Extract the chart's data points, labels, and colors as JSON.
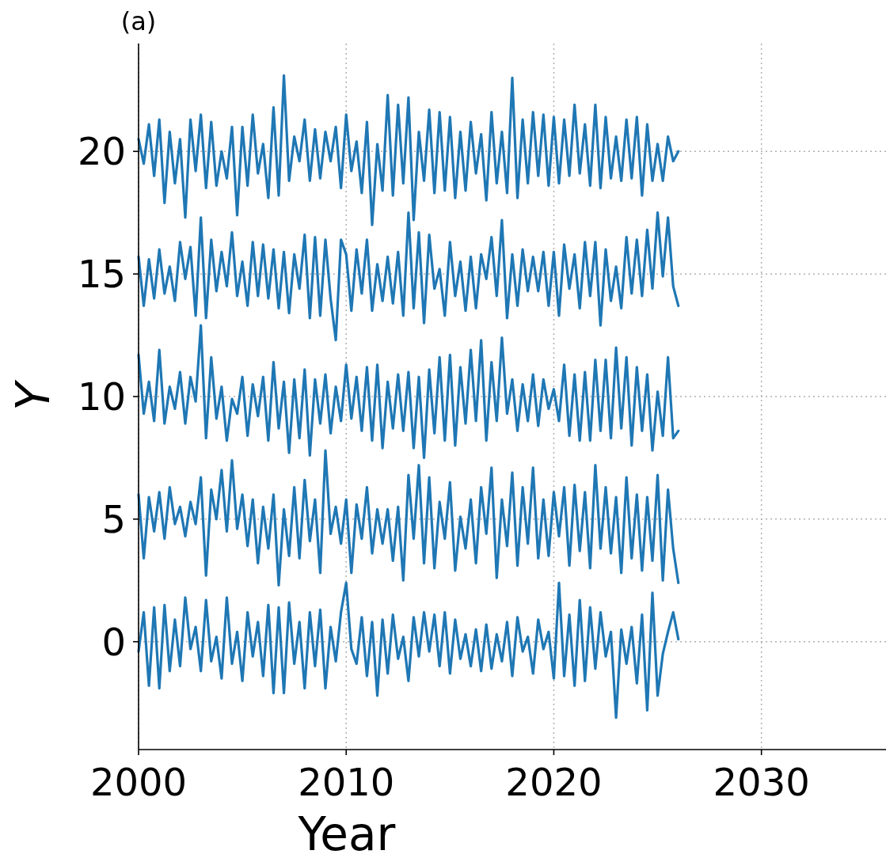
{
  "chart_data": {
    "type": "line",
    "title": "(a)",
    "xlabel": "Year",
    "ylabel": "Y",
    "x": [
      2000,
      2000.25,
      2000.5,
      2000.75,
      2001,
      2001.25,
      2001.5,
      2001.75,
      2002,
      2002.25,
      2002.5,
      2002.75,
      2003,
      2003.25,
      2003.5,
      2003.75,
      2004,
      2004.25,
      2004.5,
      2004.75,
      2005,
      2005.25,
      2005.5,
      2005.75,
      2006,
      2006.25,
      2006.5,
      2006.75,
      2007,
      2007.25,
      2007.5,
      2007.75,
      2008,
      2008.25,
      2008.5,
      2008.75,
      2009,
      2009.25,
      2009.5,
      2009.75,
      2010,
      2010.25,
      2010.5,
      2010.75,
      2011,
      2011.25,
      2011.5,
      2011.75,
      2012,
      2012.25,
      2012.5,
      2012.75,
      2013,
      2013.25,
      2013.5,
      2013.75,
      2014,
      2014.25,
      2014.5,
      2014.75,
      2015,
      2015.25,
      2015.5,
      2015.75,
      2016,
      2016.25,
      2016.5,
      2016.75,
      2017,
      2017.25,
      2017.5,
      2017.75,
      2018,
      2018.25,
      2018.5,
      2018.75,
      2019,
      2019.25,
      2019.5,
      2019.75,
      2020,
      2020.25,
      2020.5,
      2020.75,
      2021,
      2021.25,
      2021.5,
      2021.75,
      2022,
      2022.25,
      2022.5,
      2022.75,
      2023,
      2023.25,
      2023.5,
      2023.75,
      2024,
      2024.25,
      2024.5,
      2024.75,
      2025,
      2025.25,
      2025.5,
      2025.75,
      2026
    ],
    "series": [
      {
        "color": "#1f77b4",
        "values": [
          -0.4,
          1.2,
          -1.8,
          1.4,
          -1.9,
          1.5,
          -1.2,
          0.9,
          -1.0,
          1.8,
          -0.3,
          0.6,
          -1.2,
          1.7,
          -0.8,
          0.2,
          -1.5,
          1.8,
          -0.9,
          0.4,
          -1.6,
          1.2,
          -0.6,
          0.8,
          -1.4,
          1.5,
          -2.1,
          1.4,
          -2.1,
          1.6,
          -0.9,
          0.8,
          -1.9,
          1.2,
          -1.0,
          1.3,
          -1.9,
          0.6,
          -0.8,
          1.2,
          2.4,
          -0.3,
          -0.9,
          1.0,
          -1.4,
          0.8,
          -2.2,
          0.9,
          -1.3,
          1.1,
          -0.7,
          0.2,
          -1.6,
          1.0,
          -0.6,
          1.2,
          -0.4,
          1.1,
          -1.0,
          1.2,
          -1.3,
          0.9,
          -0.7,
          0.3,
          -1.0,
          0.5,
          -1.2,
          0.7,
          -1.1,
          0.3,
          -0.8,
          0.8,
          -1.4,
          1.0,
          -0.4,
          0.2,
          -1.3,
          0.9,
          -0.3,
          0.4,
          -1.5,
          2.4,
          -1.4,
          1.1,
          -1.8,
          1.7,
          -1.6,
          1.4,
          -1.1,
          1.2,
          -0.6,
          0.4,
          -3.1,
          0.5,
          -0.9,
          0.6,
          -1.7,
          1.1,
          -2.8,
          2.0,
          -2.2,
          -0.5,
          0.4,
          1.2,
          0.1
        ]
      },
      {
        "color": "#1f77b4",
        "values": [
          6.0,
          3.4,
          5.9,
          4.5,
          6.1,
          4.2,
          6.3,
          4.8,
          5.5,
          4.3,
          5.7,
          4.8,
          6.7,
          2.7,
          6.2,
          5.0,
          7.0,
          4.5,
          7.4,
          4.6,
          6.0,
          3.9,
          5.8,
          3.2,
          5.5,
          3.8,
          6.0,
          2.3,
          5.4,
          3.5,
          6.3,
          3.4,
          6.6,
          4.1,
          5.8,
          2.8,
          7.8,
          4.4,
          5.5,
          4.0,
          5.8,
          2.8,
          5.6,
          4.2,
          6.3,
          3.6,
          5.4,
          4.0,
          5.4,
          3.3,
          5.5,
          2.5,
          6.8,
          4.2,
          7.2,
          3.2,
          6.7,
          3.0,
          5.7,
          4.2,
          6.5,
          2.9,
          5.1,
          3.8,
          5.8,
          3.2,
          6.3,
          4.4,
          7.1,
          2.6,
          5.8,
          3.9,
          6.9,
          3.1,
          6.3,
          4.0,
          7.1,
          3.4,
          5.8,
          3.5,
          6.1,
          4.3,
          6.3,
          3.1,
          6.4,
          3.7,
          6.1,
          3.0,
          7.2,
          3.8,
          6.3,
          3.6,
          5.9,
          2.8,
          6.7,
          3.4,
          6.0,
          2.9,
          5.9,
          3.3,
          6.8,
          2.5,
          6.2,
          3.8,
          2.4
        ]
      },
      {
        "color": "#1f77b4",
        "values": [
          11.7,
          9.3,
          10.6,
          9.0,
          11.9,
          8.9,
          10.4,
          9.5,
          11.0,
          8.9,
          10.8,
          9.8,
          12.9,
          8.3,
          11.6,
          9.1,
          10.4,
          8.2,
          9.9,
          9.3,
          10.8,
          8.4,
          10.5,
          9.2,
          10.8,
          8.2,
          11.4,
          8.7,
          10.6,
          7.7,
          10.7,
          8.3,
          11.1,
          7.6,
          10.7,
          8.9,
          10.9,
          8.5,
          10.4,
          9.0,
          11.3,
          9.1,
          10.8,
          8.6,
          11.2,
          8.2,
          11.3,
          7.9,
          10.6,
          8.7,
          10.9,
          8.6,
          11.0,
          7.9,
          10.8,
          7.5,
          11.1,
          8.5,
          11.6,
          8.2,
          11.7,
          8.0,
          11.2,
          8.9,
          11.9,
          9.0,
          12.3,
          8.2,
          11.4,
          9.0,
          12.4,
          9.3,
          10.7,
          8.6,
          10.5,
          9.0,
          10.9,
          8.8,
          10.7,
          9.5,
          10.3,
          9.0,
          11.3,
          8.4,
          10.9,
          8.2,
          11.0,
          8.2,
          11.5,
          8.6,
          11.5,
          8.3,
          12.0,
          8.7,
          11.6,
          8.0,
          11.2,
          8.6,
          10.9,
          7.8,
          10.2,
          8.4,
          11.6,
          8.3,
          8.6
        ]
      },
      {
        "color": "#1f77b4",
        "values": [
          15.7,
          13.7,
          15.6,
          14.0,
          16.0,
          14.2,
          15.3,
          13.9,
          16.3,
          14.8,
          16.1,
          13.3,
          17.3,
          13.2,
          16.4,
          14.3,
          15.9,
          14.5,
          16.7,
          14.1,
          15.5,
          13.7,
          16.3,
          14.1,
          16.2,
          14.0,
          16.0,
          13.6,
          15.9,
          13.4,
          15.8,
          14.4,
          16.6,
          13.2,
          16.5,
          13.3,
          16.4,
          14.0,
          12.3,
          16.4,
          15.8,
          13.5,
          16.0,
          14.2,
          16.4,
          13.5,
          15.4,
          13.9,
          15.7,
          13.8,
          15.9,
          13.3,
          17.5,
          13.6,
          16.7,
          13.0,
          16.6,
          14.4,
          15.2,
          13.3,
          16.3,
          14.1,
          15.5,
          13.5,
          15.7,
          13.6,
          15.8,
          14.8,
          16.5,
          14.1,
          17.2,
          13.2,
          15.8,
          13.7,
          16.0,
          14.3,
          15.7,
          14.3,
          15.9,
          13.7,
          15.9,
          13.3,
          16.2,
          14.4,
          15.8,
          13.6,
          16.3,
          14.1,
          16.3,
          12.9,
          16.0,
          13.9,
          15.3,
          13.6,
          16.5,
          14.2,
          16.4,
          14.1,
          16.8,
          14.4,
          17.5,
          14.9,
          17.3,
          14.5,
          13.7
        ]
      },
      {
        "color": "#1f77b4",
        "values": [
          20.5,
          19.5,
          21.1,
          19.0,
          21.3,
          17.9,
          20.8,
          18.7,
          20.5,
          17.3,
          21.3,
          19.2,
          21.5,
          18.5,
          21.2,
          18.6,
          20.0,
          18.9,
          21.0,
          17.4,
          21.0,
          18.6,
          21.5,
          19.1,
          20.3,
          18.1,
          21.8,
          18.2,
          23.1,
          18.8,
          20.6,
          19.6,
          21.3,
          18.8,
          20.9,
          18.9,
          20.8,
          19.6,
          21.0,
          18.5,
          21.5,
          19.2,
          20.4,
          18.3,
          21.2,
          17.0,
          20.3,
          18.4,
          22.3,
          18.2,
          21.9,
          18.7,
          22.2,
          17.2,
          20.8,
          18.8,
          21.7,
          18.3,
          21.6,
          18.4,
          21.4,
          18.1,
          20.8,
          18.4,
          21.2,
          19.1,
          20.7,
          18.0,
          21.6,
          18.7,
          20.8,
          18.3,
          23.0,
          18.1,
          21.3,
          18.7,
          21.6,
          19.0,
          21.5,
          18.6,
          21.4,
          18.7,
          21.3,
          19.0,
          21.9,
          19.1,
          21.1,
          18.6,
          21.9,
          18.5,
          21.4,
          18.9,
          20.6,
          18.8,
          21.3,
          18.9,
          21.4,
          18.2,
          21.1,
          18.8,
          20.3,
          18.8,
          20.6,
          19.6,
          20.0
        ]
      }
    ],
    "xlim": [
      2000,
      2036
    ],
    "xticks": [
      2000,
      2010,
      2020,
      2030
    ],
    "ylim": [
      -4.4,
      24.4
    ],
    "yticks": [
      0,
      5,
      10,
      15,
      20
    ],
    "grid": true,
    "line_style": "solid"
  }
}
